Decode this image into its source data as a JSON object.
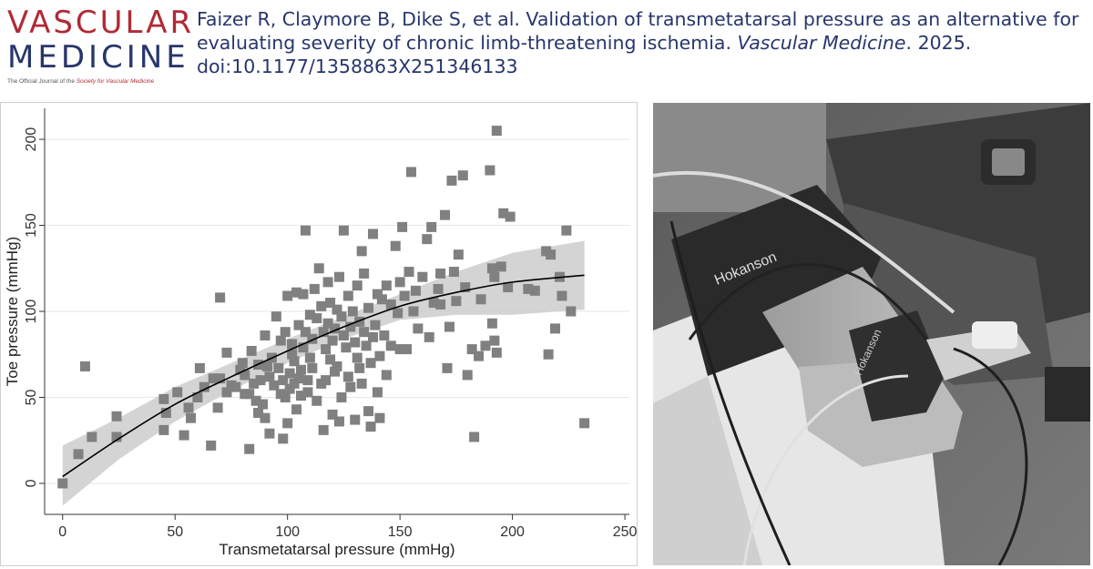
{
  "header": {
    "logo_line1": "VASCULAR",
    "logo_line2": "MEDICINE",
    "logo_tagline_prefix": "The Official Journal of the ",
    "logo_tagline_society": "Society for Vascular Medicine",
    "citation_main": "Faizer R, Claymore B, Dike S, et al. Validation of transmetatarsal pressure as an alternative for evaluating severity of chronic limb-threatening ischemia. ",
    "citation_journal": "Vascular Medicine",
    "citation_tail": ". 2025. doi:10.1177/1358863X251346133"
  },
  "colors": {
    "logo_red": "#b02a35",
    "logo_blue": "#27366b",
    "point": "#808080",
    "ci_band": "#cccccc",
    "fit_line": "#000000",
    "grid": "#e6e6e6"
  },
  "chart_data": {
    "type": "scatter",
    "title": "",
    "xlabel": "Transmetatarsal pressure (mmHg)",
    "ylabel": "Toe pressure (mmHg)",
    "xlim": [
      -8,
      252
    ],
    "ylim": [
      -18,
      218
    ],
    "xticks": [
      0,
      50,
      100,
      150,
      200,
      250
    ],
    "yticks": [
      0,
      50,
      100,
      150,
      200
    ],
    "grid": "horizontal",
    "points": [
      [
        0,
        0
      ],
      [
        7,
        17
      ],
      [
        10,
        68
      ],
      [
        13,
        27
      ],
      [
        24,
        39
      ],
      [
        24,
        27
      ],
      [
        45,
        31
      ],
      [
        45,
        49
      ],
      [
        46,
        41
      ],
      [
        51,
        53
      ],
      [
        54,
        28
      ],
      [
        56,
        44
      ],
      [
        57,
        38
      ],
      [
        60,
        50
      ],
      [
        61,
        67
      ],
      [
        63,
        56
      ],
      [
        66,
        22
      ],
      [
        67,
        61
      ],
      [
        69,
        44
      ],
      [
        70,
        108
      ],
      [
        70,
        61
      ],
      [
        73,
        53
      ],
      [
        73,
        76
      ],
      [
        75,
        57
      ],
      [
        77,
        56
      ],
      [
        79,
        66
      ],
      [
        80,
        70
      ],
      [
        81,
        52
      ],
      [
        81,
        63
      ],
      [
        83,
        20
      ],
      [
        83,
        52
      ],
      [
        84,
        77
      ],
      [
        85,
        58
      ],
      [
        86,
        48
      ],
      [
        87,
        41
      ],
      [
        87,
        69
      ],
      [
        88,
        60
      ],
      [
        89,
        46
      ],
      [
        90,
        38
      ],
      [
        90,
        86
      ],
      [
        91,
        68
      ],
      [
        92,
        62
      ],
      [
        92,
        29
      ],
      [
        93,
        73
      ],
      [
        94,
        57
      ],
      [
        95,
        97
      ],
      [
        96,
        67
      ],
      [
        97,
        52
      ],
      [
        97,
        83
      ],
      [
        98,
        26
      ],
      [
        98,
        60
      ],
      [
        99,
        50
      ],
      [
        99,
        88
      ],
      [
        100,
        109
      ],
      [
        100,
        35
      ],
      [
        101,
        64
      ],
      [
        101,
        55
      ],
      [
        102,
        75
      ],
      [
        102,
        81
      ],
      [
        103,
        71
      ],
      [
        103,
        58
      ],
      [
        104,
        43
      ],
      [
        104,
        111
      ],
      [
        105,
        92
      ],
      [
        105,
        61
      ],
      [
        106,
        66
      ],
      [
        106,
        51
      ],
      [
        107,
        110
      ],
      [
        107,
        79
      ],
      [
        108,
        88
      ],
      [
        108,
        147
      ],
      [
        109,
        53
      ],
      [
        109,
        60
      ],
      [
        110,
        73
      ],
      [
        110,
        98
      ],
      [
        111,
        84
      ],
      [
        111,
        67
      ],
      [
        112,
        113
      ],
      [
        113,
        48
      ],
      [
        113,
        96
      ],
      [
        114,
        125
      ],
      [
        115,
        58
      ],
      [
        115,
        103
      ],
      [
        116,
        31
      ],
      [
        116,
        88
      ],
      [
        117,
        60
      ],
      [
        117,
        78
      ],
      [
        118,
        117
      ],
      [
        118,
        93
      ],
      [
        119,
        72
      ],
      [
        119,
        105
      ],
      [
        120,
        83
      ],
      [
        120,
        40
      ],
      [
        121,
        65
      ],
      [
        121,
        90
      ],
      [
        122,
        101
      ],
      [
        122,
        68
      ],
      [
        123,
        36
      ],
      [
        123,
        120
      ],
      [
        124,
        50
      ],
      [
        124,
        97
      ],
      [
        125,
        86
      ],
      [
        125,
        147
      ],
      [
        126,
        79
      ],
      [
        127,
        109
      ],
      [
        127,
        62
      ],
      [
        128,
        91
      ],
      [
        128,
        56
      ],
      [
        129,
        100
      ],
      [
        130,
        37
      ],
      [
        130,
        82
      ],
      [
        131,
        115
      ],
      [
        131,
        73
      ],
      [
        132,
        67
      ],
      [
        132,
        94
      ],
      [
        133,
        135
      ],
      [
        133,
        58
      ],
      [
        134,
        122
      ],
      [
        134,
        88
      ],
      [
        135,
        80
      ],
      [
        136,
        102
      ],
      [
        136,
        42
      ],
      [
        137,
        70
      ],
      [
        137,
        33
      ],
      [
        138,
        145
      ],
      [
        138,
        85
      ],
      [
        139,
        92
      ],
      [
        140,
        53
      ],
      [
        140,
        110
      ],
      [
        141,
        74
      ],
      [
        141,
        38
      ],
      [
        142,
        107
      ],
      [
        143,
        86
      ],
      [
        144,
        63
      ],
      [
        144,
        115
      ],
      [
        146,
        104
      ],
      [
        146,
        80
      ],
      [
        148,
        138
      ],
      [
        149,
        99
      ],
      [
        150,
        117
      ],
      [
        150,
        78
      ],
      [
        151,
        149
      ],
      [
        152,
        109
      ],
      [
        153,
        78
      ],
      [
        154,
        123
      ],
      [
        155,
        181
      ],
      [
        156,
        100
      ],
      [
        157,
        112
      ],
      [
        158,
        90
      ],
      [
        160,
        120
      ],
      [
        162,
        142
      ],
      [
        163,
        85
      ],
      [
        164,
        149
      ],
      [
        165,
        105
      ],
      [
        167,
        113
      ],
      [
        168,
        122
      ],
      [
        168,
        104
      ],
      [
        170,
        156
      ],
      [
        171,
        67
      ],
      [
        172,
        91
      ],
      [
        173,
        176
      ],
      [
        174,
        123
      ],
      [
        175,
        106
      ],
      [
        176,
        133
      ],
      [
        178,
        179
      ],
      [
        179,
        114
      ],
      [
        180,
        63
      ],
      [
        182,
        78
      ],
      [
        183,
        27
      ],
      [
        185,
        74
      ],
      [
        186,
        107
      ],
      [
        188,
        80
      ],
      [
        190,
        182
      ],
      [
        191,
        93
      ],
      [
        191,
        125
      ],
      [
        192,
        120
      ],
      [
        192,
        83
      ],
      [
        193,
        76
      ],
      [
        193,
        205
      ],
      [
        195,
        126
      ],
      [
        196,
        157
      ],
      [
        198,
        114
      ],
      [
        199,
        155
      ],
      [
        207,
        113
      ],
      [
        210,
        112
      ],
      [
        215,
        135
      ],
      [
        216,
        75
      ],
      [
        217,
        133
      ],
      [
        219,
        90
      ],
      [
        221,
        120
      ],
      [
        222,
        109
      ],
      [
        224,
        147
      ],
      [
        226,
        100
      ],
      [
        232,
        35
      ]
    ],
    "fit": {
      "x": [
        0,
        25,
        50,
        75,
        100,
        125,
        150,
        175,
        200,
        232
      ],
      "y": [
        4,
        26,
        46,
        62,
        77,
        91,
        103,
        111,
        117,
        121
      ],
      "ci_lower": [
        -13,
        14,
        36,
        54,
        70,
        84,
        95,
        98,
        98,
        101
      ],
      "ci_upper": [
        22,
        38,
        56,
        70,
        84,
        97,
        110,
        123,
        134,
        141
      ]
    }
  },
  "photo": {
    "cuff_text_1": "Hokanson",
    "cuff_text_2": "Hokanson"
  }
}
